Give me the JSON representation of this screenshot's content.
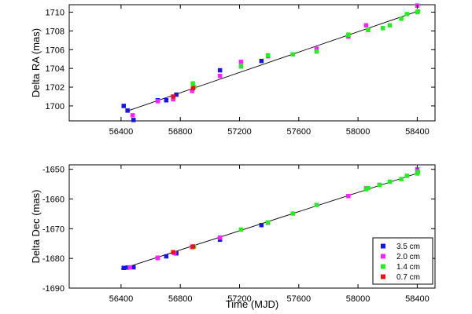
{
  "colors": {
    "3.5 cm": "#1515e6",
    "2.0 cm": "#ff22ff",
    "1.4 cm": "#22ee22",
    "0.7 cm": "#ee1111",
    "fit": "#000000",
    "frame": "#000000",
    "background": "#ffffff"
  },
  "legend": {
    "placement": "bottom-right of lower panel",
    "entries": [
      "3.5 cm",
      "2.0 cm",
      "1.4 cm",
      "0.7 cm"
    ]
  },
  "xlabel": "Time (MJD)",
  "chart_data": [
    {
      "type": "scatter",
      "title": "",
      "xlabel": "",
      "ylabel": "Delta RA (mas)",
      "xlim": [
        56050,
        58520
      ],
      "ylim": [
        1698.4,
        1710.8
      ],
      "xticks": [
        56400,
        56800,
        57200,
        57600,
        58000,
        58400
      ],
      "xtick_labels": [
        "56400",
        "56800",
        "57200",
        "57600",
        "58000",
        "58400"
      ],
      "yticks": [
        1700,
        1702,
        1704,
        1706,
        1708,
        1710
      ],
      "ytick_labels": [
        "1700",
        "1702",
        "1704",
        "1706",
        "1708",
        "1710"
      ],
      "grid": false,
      "fit": {
        "x": [
          56450,
          58420
        ],
        "y": [
          1699.5,
          1710.2
        ]
      },
      "series": [
        {
          "name": "3.5 cm",
          "x": [
            56418,
            56444,
            56484,
            56648,
            56705,
            56773,
            57068,
            57348
          ],
          "y": [
            1700.0,
            1699.5,
            1698.5,
            1700.6,
            1700.6,
            1701.2,
            1703.8,
            1704.8
          ]
        },
        {
          "name": "2.0 cm",
          "x": [
            56478,
            56648,
            56752,
            56880,
            57068,
            57210,
            57392,
            57720,
            57935,
            58055,
            58400
          ],
          "y": [
            1699.0,
            1700.5,
            1700.7,
            1701.6,
            1703.2,
            1704.7,
            1705.3,
            1706.1,
            1707.4,
            1708.6,
            1710.7
          ]
        },
        {
          "name": "1.4 cm",
          "x": [
            56885,
            56893,
            57210,
            57392,
            57560,
            57720,
            57935,
            58068,
            58168,
            58215,
            58292,
            58330,
            58400,
            58405
          ],
          "y": [
            1702.4,
            1702.0,
            1704.2,
            1705.4,
            1705.5,
            1705.8,
            1707.6,
            1708.1,
            1708.3,
            1708.6,
            1709.3,
            1709.8,
            1710.0,
            1710.1
          ]
        },
        {
          "name": "0.7 cm",
          "x": [
            56752,
            56886
          ],
          "y": [
            1701.0,
            1701.9
          ]
        }
      ]
    },
    {
      "type": "scatter",
      "title": "",
      "xlabel": "Time (MJD)",
      "ylabel": "Delta Dec (mas)",
      "xlim": [
        56050,
        58520
      ],
      "ylim": [
        -1690,
        -1648.5
      ],
      "xticks": [
        56400,
        56800,
        57200,
        57600,
        58000,
        58400
      ],
      "xtick_labels": [
        "56400",
        "56800",
        "57200",
        "57600",
        "58000",
        "58400"
      ],
      "yticks": [
        -1690,
        -1680,
        -1670,
        -1660,
        -1650
      ],
      "ytick_labels": [
        "-1690",
        "-1680",
        "-1670",
        "-1660",
        "-1650"
      ],
      "grid": false,
      "fit": {
        "x": [
          56400,
          58420
        ],
        "y": [
          -1683.6,
          -1651.0
        ]
      },
      "series": [
        {
          "name": "3.5 cm",
          "x": [
            56418,
            56444,
            56484,
            56648,
            56705,
            56773,
            57068,
            57348
          ],
          "y": [
            -1683.2,
            -1683.1,
            -1683.0,
            -1679.8,
            -1679.3,
            -1678.3,
            -1673.7,
            -1668.8
          ]
        },
        {
          "name": "2.0 cm",
          "x": [
            56460,
            56648,
            56760,
            56880,
            57068,
            57392,
            57935,
            58055,
            58400
          ],
          "y": [
            -1683.0,
            -1679.9,
            -1678.2,
            -1676.2,
            -1673.0,
            -1668.0,
            -1659.0,
            -1656.4,
            -1650.0
          ]
        },
        {
          "name": "1.4 cm",
          "x": [
            56892,
            57210,
            57392,
            57560,
            57720,
            58055,
            58068,
            58145,
            58215,
            58292,
            58330,
            58400,
            58405
          ],
          "y": [
            -1676.0,
            -1670.3,
            -1667.9,
            -1664.9,
            -1662.0,
            -1656.7,
            -1656.3,
            -1655.2,
            -1654.2,
            -1653.3,
            -1652.2,
            -1651.4,
            -1650.9
          ]
        },
        {
          "name": "0.7 cm",
          "x": [
            56752,
            56886
          ],
          "y": [
            -1677.9,
            -1676.0
          ]
        }
      ]
    }
  ]
}
